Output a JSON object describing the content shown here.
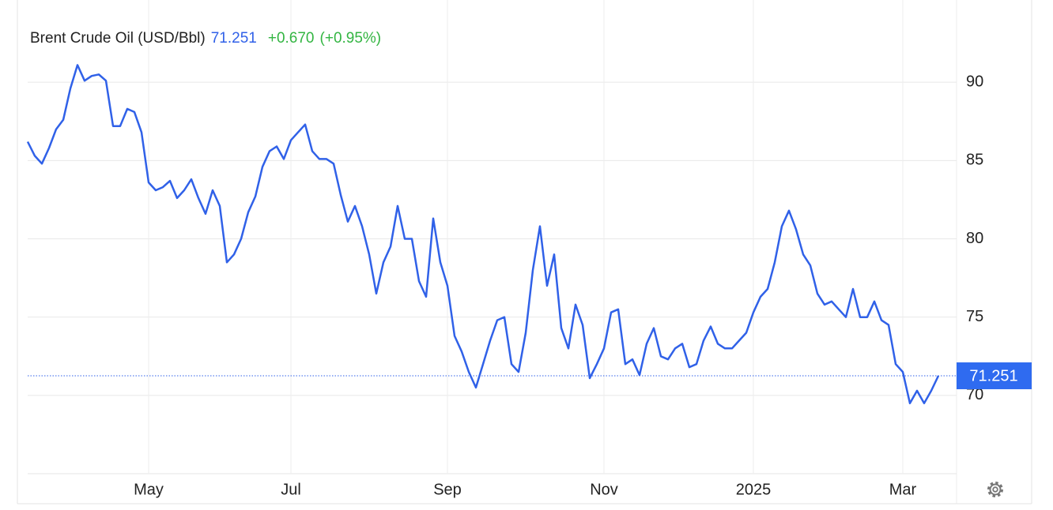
{
  "chart_data": {
    "type": "line",
    "price": 71.251,
    "change": "+0.670",
    "change_pct": "(+0.95%)",
    "categories": [
      null,
      null,
      null,
      null,
      null,
      null,
      null,
      null,
      null,
      null,
      null,
      null,
      null,
      null,
      null,
      null,
      null,
      "May",
      null,
      null,
      null,
      null,
      null,
      null,
      null,
      null,
      null,
      null,
      null,
      null,
      null,
      null,
      null,
      null,
      null,
      null,
      null,
      "Jul",
      null,
      null,
      null,
      null,
      null,
      null,
      null,
      null,
      null,
      null,
      null,
      null,
      null,
      null,
      null,
      null,
      null,
      null,
      null,
      null,
      null,
      "Sep",
      null,
      null,
      null,
      null,
      null,
      null,
      null,
      null,
      null,
      null,
      null,
      null,
      null,
      null,
      null,
      null,
      null,
      null,
      null,
      null,
      null,
      "Nov",
      null,
      null,
      null,
      null,
      null,
      null,
      null,
      null,
      null,
      null,
      null,
      null,
      null,
      null,
      null,
      null,
      null,
      null,
      null,
      null,
      "2025",
      null,
      null,
      null,
      null,
      null,
      null,
      null,
      null,
      null,
      null,
      null,
      null,
      null,
      null,
      null,
      null,
      null,
      null,
      null,
      null,
      "Mar",
      null,
      null,
      null,
      null,
      null
    ],
    "series": [
      {
        "name": "Brent Crude Oil (USD/Bbl)",
        "color": "#3061e8",
        "values": [
          86.2,
          85.3,
          84.8,
          85.8,
          87.0,
          87.6,
          89.6,
          91.1,
          90.1,
          90.4,
          90.5,
          90.1,
          87.2,
          87.2,
          88.3,
          88.1,
          86.8,
          83.6,
          83.1,
          83.3,
          83.7,
          82.6,
          83.1,
          83.8,
          82.6,
          81.6,
          83.1,
          82.1,
          78.5,
          79.0,
          80.0,
          81.7,
          82.7,
          84.6,
          85.6,
          85.9,
          85.1,
          86.3,
          86.8,
          87.3,
          85.6,
          85.1,
          85.1,
          84.8,
          82.8,
          81.1,
          82.1,
          80.8,
          79.0,
          76.5,
          78.5,
          79.5,
          82.1,
          80.0,
          80.0,
          77.3,
          76.3,
          81.3,
          78.5,
          77.0,
          73.8,
          72.8,
          71.5,
          70.5,
          72.0,
          73.5,
          74.8,
          75.0,
          72.0,
          71.5,
          74.0,
          78.0,
          80.8,
          77.0,
          79.0,
          74.3,
          73.0,
          75.8,
          74.5,
          71.1,
          72.0,
          73.0,
          75.3,
          75.5,
          72.0,
          72.3,
          71.3,
          73.3,
          74.3,
          72.5,
          72.3,
          73.0,
          73.3,
          71.8,
          72.0,
          73.5,
          74.4,
          73.3,
          73.0,
          73.0,
          73.5,
          74.0,
          75.3,
          76.3,
          76.8,
          78.5,
          80.8,
          81.8,
          80.6,
          79.0,
          78.3,
          76.5,
          75.8,
          76.0,
          75.5,
          75.0,
          76.8,
          75.0,
          75.0,
          76.0,
          74.8,
          74.5,
          72.0,
          71.5,
          69.5,
          70.3,
          69.5,
          70.3,
          71.251
        ]
      }
    ],
    "ylim": [
      65,
      95
    ],
    "yticks": [
      70,
      75,
      80,
      85,
      90
    ],
    "grid": true
  }
}
